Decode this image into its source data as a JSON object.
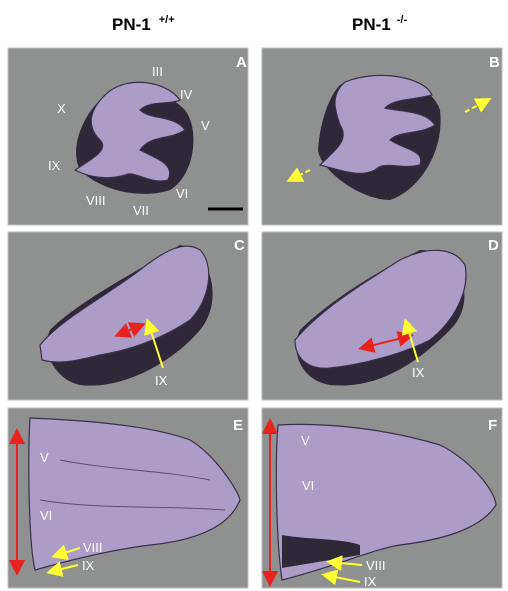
{
  "columns": [
    {
      "label": "PN-1",
      "superscript": "+/+"
    },
    {
      "label": "PN-1",
      "superscript": "-/-"
    }
  ],
  "panels": [
    {
      "letter": "A",
      "labels": [
        "III",
        "IV",
        "V",
        "VI",
        "VII",
        "VIII",
        "IX",
        "X"
      ]
    },
    {
      "letter": "B"
    },
    {
      "letter": "C",
      "labels": [
        "IX"
      ]
    },
    {
      "letter": "D",
      "labels": [
        "IX"
      ]
    },
    {
      "letter": "E",
      "labels": [
        "V",
        "VI",
        "VIII",
        "IX"
      ]
    },
    {
      "letter": "F",
      "labels": [
        "V",
        "VI",
        "VIII",
        "IX"
      ]
    }
  ]
}
